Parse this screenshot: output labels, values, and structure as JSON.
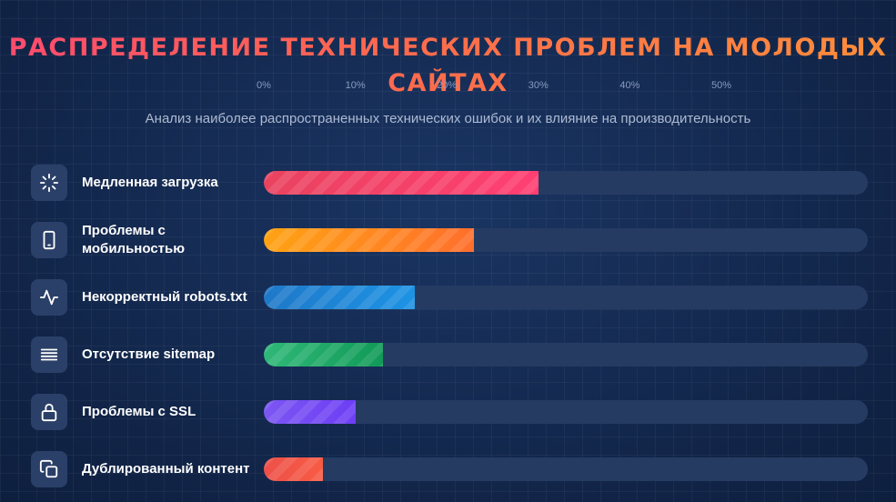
{
  "title_lines": [
    "Распределение технических проблем на молодых",
    "сайтах"
  ],
  "subtitle": "Анализ наиболее распространенных технических ошибок и их влияние на производительность",
  "chart_data": {
    "type": "bar",
    "orientation": "horizontal",
    "title": "Распределение технических проблем на молодых сайтах",
    "subtitle": "Анализ наиболее распространенных технических ошибок и их влияние на производительность",
    "x_ticks": [
      "0%",
      "10%",
      "20%",
      "30%",
      "40%",
      "50%"
    ],
    "xlim": [
      0,
      66
    ],
    "categories": [
      "Медленная загрузка",
      "Проблемы с мобильностью",
      "Некорректный robots.txt",
      "Отсутствие sitemap",
      "Проблемы с SSL",
      "Дублированный контент"
    ],
    "values": [
      30,
      23,
      16.5,
      13,
      10,
      6.5
    ],
    "colors": [
      [
        "#e9435f",
        "#ff3f72"
      ],
      [
        "#ffa313",
        "#ff6f2c"
      ],
      [
        "#1f78c8",
        "#1d93e4"
      ],
      [
        "#2fb878",
        "#119a57"
      ],
      [
        "#7c56f2",
        "#6d3ef5"
      ],
      [
        "#ec5048",
        "#f85b44"
      ]
    ],
    "icons": [
      "loading-icon",
      "mobile-icon",
      "pulse-icon",
      "list-icon",
      "lock-icon",
      "copy-icon"
    ],
    "grid": false,
    "legend": "none"
  }
}
